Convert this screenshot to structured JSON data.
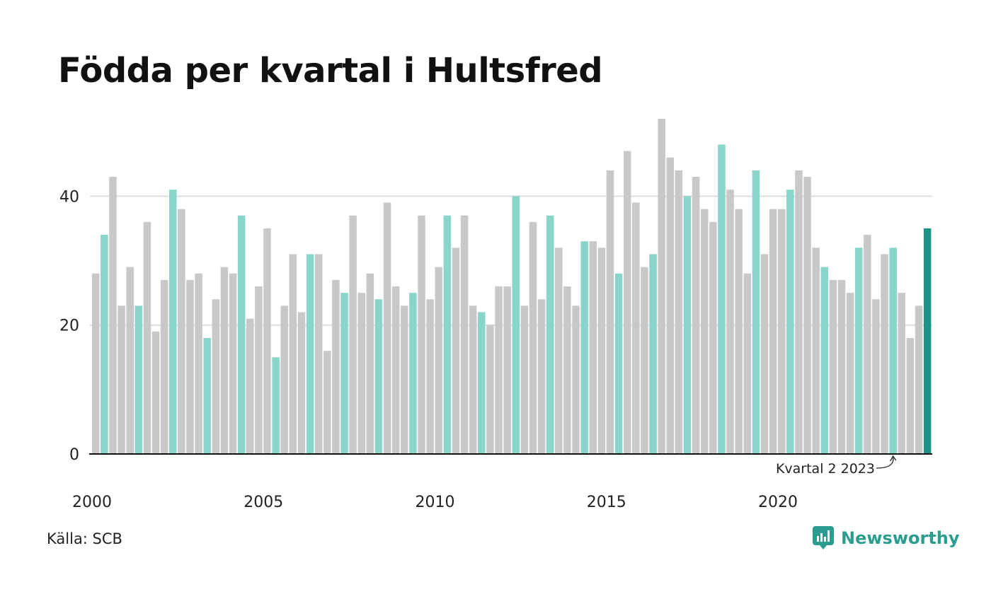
{
  "title": "Födda per kvartal i Hultsfred",
  "source": "Källa: SCB",
  "brand": "Newsworthy",
  "colors": {
    "gray": "#c8c8c8",
    "q2": "#89d4cb",
    "highlight": "#1a9486",
    "axis": "#111111",
    "grid": "#dddddd",
    "brand": "#2a9d8f"
  },
  "chart_data": {
    "type": "bar",
    "title": "Födda per kvartal i Hultsfred",
    "xlabel": "",
    "ylabel": "",
    "ylim": [
      0,
      52
    ],
    "yticks": [
      0,
      20,
      40
    ],
    "xticks": [
      "2000",
      "2005",
      "2010",
      "2015",
      "2020"
    ],
    "grid": true,
    "start": "2000 Q1",
    "annotation": "Kvartal 2 2023",
    "values": [
      28,
      34,
      43,
      23,
      29,
      23,
      36,
      19,
      27,
      41,
      38,
      27,
      28,
      18,
      24,
      29,
      28,
      37,
      21,
      26,
      35,
      15,
      23,
      31,
      22,
      31,
      31,
      16,
      27,
      25,
      37,
      25,
      28,
      24,
      39,
      26,
      23,
      25,
      37,
      24,
      29,
      37,
      32,
      37,
      23,
      22,
      20,
      26,
      26,
      40,
      23,
      36,
      24,
      37,
      32,
      26,
      23,
      33,
      33,
      32,
      44,
      28,
      47,
      39,
      29,
      31,
      52,
      46,
      44,
      40,
      43,
      38,
      36,
      48,
      41,
      38,
      28,
      44,
      31,
      38,
      38,
      41,
      44,
      43,
      32,
      29,
      27,
      27,
      25,
      32,
      34,
      24,
      31,
      32,
      25,
      18,
      23,
      35
    ]
  }
}
